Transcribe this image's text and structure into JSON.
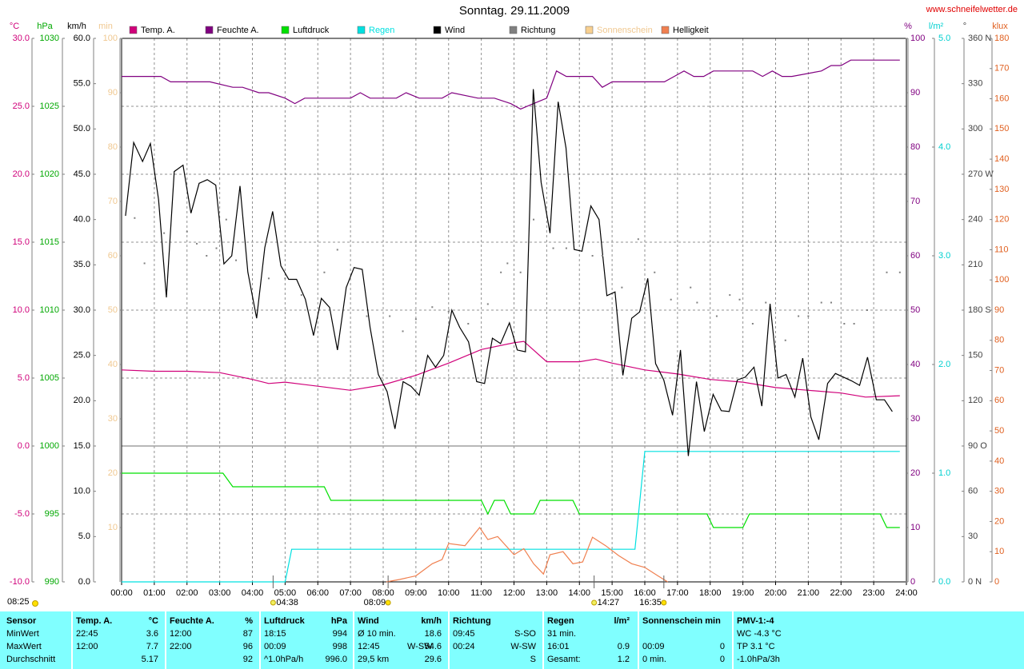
{
  "chart_data": {
    "type": "line",
    "title": "Sonntag. 29.11.2009",
    "source": "www.schneifelwetter.de",
    "updated": "08:25",
    "xlim": [
      0,
      24
    ],
    "xticks": [
      {
        "value": 0,
        "label": "00:00"
      },
      {
        "value": 1,
        "label": "01:00"
      },
      {
        "value": 2,
        "label": "02:00"
      },
      {
        "value": 3,
        "label": "03:00"
      },
      {
        "value": 4,
        "label": "04:00"
      },
      {
        "value": 5,
        "label": "05:00"
      },
      {
        "value": 6,
        "label": "06:00"
      },
      {
        "value": 7,
        "label": "07:00"
      },
      {
        "value": 8,
        "label": "08:00"
      },
      {
        "value": 9,
        "label": "09:00"
      },
      {
        "value": 10,
        "label": "10:00"
      },
      {
        "value": 11,
        "label": "11:00"
      },
      {
        "value": 12,
        "label": "12:00"
      },
      {
        "value": 13,
        "label": "13:00"
      },
      {
        "value": 14,
        "label": "14:00"
      },
      {
        "value": 15,
        "label": "15:00"
      },
      {
        "value": 16,
        "label": "16:00"
      },
      {
        "value": 17,
        "label": "17:00"
      },
      {
        "value": 18,
        "label": "18:00"
      },
      {
        "value": 19,
        "label": "19:00"
      },
      {
        "value": 20,
        "label": "20:00"
      },
      {
        "value": 21,
        "label": "21:00"
      },
      {
        "value": 22,
        "label": "22:00"
      },
      {
        "value": 23,
        "label": "23:00"
      },
      {
        "value": 24,
        "label": "24:00"
      }
    ],
    "grid": true,
    "axes": [
      {
        "label": "°C",
        "color": "#d0007a",
        "side": "left",
        "lim": [
          -10,
          30
        ],
        "ticks": [
          {
            "value": 30,
            "label": "30.0"
          },
          {
            "value": 25,
            "label": "25.0"
          },
          {
            "value": 20,
            "label": "20.0"
          },
          {
            "value": 15,
            "label": "15.0"
          },
          {
            "value": 10,
            "label": "10.0"
          },
          {
            "value": 5,
            "label": "5.0"
          },
          {
            "value": 0,
            "label": "0.0"
          },
          {
            "value": -5,
            "label": "-5.0"
          },
          {
            "value": -10,
            "label": "-10.0"
          }
        ]
      },
      {
        "label": "hPa",
        "color": "#00a800",
        "side": "left",
        "lim": [
          990,
          1030
        ],
        "ticks": [
          1030,
          1025,
          1020,
          1015,
          1010,
          1005,
          1000,
          995,
          990
        ]
      },
      {
        "label": "km/h",
        "color": "#000000",
        "side": "left",
        "lim": [
          0,
          60
        ],
        "ticks": [
          {
            "value": 60,
            "label": "60.0"
          },
          {
            "value": 55,
            "label": "55.0"
          },
          {
            "value": 50,
            "label": "50.0"
          },
          {
            "value": 45,
            "label": "45.0"
          },
          {
            "value": 40,
            "label": "40.0"
          },
          {
            "value": 35,
            "label": "35.0"
          },
          {
            "value": 30,
            "label": "30.0"
          },
          {
            "value": 25,
            "label": "25.0"
          },
          {
            "value": 20,
            "label": "20.0"
          },
          {
            "value": 15,
            "label": "15.0"
          },
          {
            "value": 10,
            "label": "10.0"
          },
          {
            "value": 5,
            "label": "5.0"
          },
          {
            "value": 0,
            "label": "0.0"
          }
        ]
      },
      {
        "label": "min",
        "color": "#f0c890",
        "side": "left",
        "lim": [
          0,
          100
        ],
        "ticks": [
          100,
          90,
          80,
          70,
          60,
          50,
          40,
          30,
          20,
          10
        ]
      },
      {
        "label": "%",
        "color": "#800080",
        "side": "right",
        "lim": [
          0,
          100
        ],
        "ticks": [
          100,
          90,
          80,
          70,
          60,
          50,
          40,
          30,
          20,
          10,
          0
        ]
      },
      {
        "label": "l/m²",
        "color": "#00d0d0",
        "side": "right",
        "lim": [
          0,
          5
        ],
        "ticks": [
          {
            "value": 5,
            "label": "5.0"
          },
          {
            "value": 4,
            "label": "4.0"
          },
          {
            "value": 3,
            "label": "3.0"
          },
          {
            "value": 2,
            "label": "2.0"
          },
          {
            "value": 1,
            "label": "1.0"
          },
          {
            "value": 0,
            "label": "0.0"
          }
        ]
      },
      {
        "label": "°",
        "color": "#404040",
        "side": "right",
        "lim": [
          0,
          360
        ],
        "ticks": [
          {
            "value": 360,
            "label": "360 N"
          },
          330,
          300,
          {
            "value": 270,
            "label": "270 W"
          },
          240,
          210,
          {
            "value": 180,
            "label": "180 S"
          },
          150,
          120,
          {
            "value": 90,
            "label": "90 O"
          },
          60,
          30,
          {
            "value": 0,
            "label": "0 N"
          }
        ]
      },
      {
        "label": "klux",
        "color": "#e06020",
        "side": "right",
        "lim": [
          0,
          180
        ],
        "ticks": [
          180,
          170,
          160,
          150,
          140,
          130,
          120,
          110,
          100,
          90,
          80,
          70,
          60,
          50,
          40,
          30,
          20,
          10,
          0
        ]
      }
    ],
    "series": [
      {
        "name": "Temp. A.",
        "color": "#d0007a",
        "axis": 0,
        "x": [
          0,
          1,
          2,
          3,
          4,
          4.5,
          5,
          6,
          7,
          8,
          9,
          10,
          11,
          12,
          12.3,
          13,
          14,
          14.5,
          15,
          16,
          17,
          18,
          19,
          20,
          21,
          22,
          22.75,
          23.8
        ],
        "values": [
          5.6,
          5.5,
          5.5,
          5.4,
          4.9,
          4.6,
          4.7,
          4.4,
          4.1,
          4.5,
          5.2,
          6.1,
          7.1,
          7.6,
          7.7,
          6.2,
          6.2,
          6.4,
          6.1,
          5.6,
          5.3,
          4.9,
          4.7,
          4.3,
          4.1,
          3.9,
          3.6,
          3.7
        ]
      },
      {
        "name": "Feuchte A.",
        "color": "#800080",
        "axis": 4,
        "x": [
          0,
          1.2,
          1.5,
          2.7,
          3.4,
          3.7,
          4.2,
          4.5,
          5,
          5.3,
          5.6,
          6,
          7,
          7.3,
          7.6,
          8.4,
          8.7,
          9.1,
          9.8,
          10.1,
          10.9,
          11.4,
          11.9,
          12.2,
          12.6,
          13,
          13.3,
          13.6,
          14.4,
          14.7,
          15,
          16.6,
          16.9,
          17.2,
          17.5,
          17.8,
          18.1,
          19.3,
          19.6,
          19.9,
          20.2,
          20.5,
          21.4,
          21.7,
          22,
          22.3,
          23.8
        ],
        "values": [
          93,
          93,
          92,
          92,
          91,
          91,
          90,
          90,
          89,
          88,
          89,
          89,
          89,
          90,
          89,
          89,
          90,
          89,
          89,
          90,
          89,
          89,
          88,
          87,
          88,
          89,
          94,
          93,
          93,
          91,
          92,
          92,
          93,
          94,
          93,
          93,
          94,
          94,
          93,
          94,
          93,
          93,
          94,
          95,
          95,
          96,
          96
        ]
      },
      {
        "name": "Luftdruck",
        "color": "#00e000",
        "axis": 1,
        "x": [
          0,
          3.1,
          3.4,
          6.2,
          6.4,
          11,
          11.2,
          11.4,
          11.7,
          11.9,
          12.6,
          12.8,
          13.8,
          14,
          17.9,
          18.1,
          19,
          19.2,
          23.2,
          23.4,
          23.8
        ],
        "values": [
          998,
          998,
          997,
          997,
          996,
          996,
          995,
          996,
          996,
          995,
          995,
          996,
          996,
          995,
          995,
          994,
          994,
          995,
          995,
          994,
          994
        ]
      },
      {
        "name": "Regen",
        "color": "#00e0e0",
        "label_color": "#00e0e0",
        "axis": 5,
        "x": [
          0,
          5.0,
          5.2,
          15.7,
          16.0,
          23.8
        ],
        "values": [
          0,
          0,
          0.3,
          0.3,
          1.2,
          1.2
        ]
      },
      {
        "name": "Wind",
        "color": "#000000",
        "axis": 2,
        "x": [
          0.12,
          0.37,
          0.64,
          0.88,
          1.13,
          1.37,
          1.61,
          1.88,
          2.12,
          2.37,
          2.62,
          2.88,
          3.13,
          3.37,
          3.62,
          3.86,
          4.13,
          4.38,
          4.62,
          4.87,
          5.11,
          5.35,
          5.62,
          5.87,
          6.11,
          6.36,
          6.6,
          6.87,
          7.11,
          7.36,
          7.6,
          7.85,
          8.12,
          8.36,
          8.61,
          8.85,
          9.1,
          9.36,
          9.6,
          9.85,
          10.1,
          10.34,
          10.61,
          10.86,
          11.1,
          11.34,
          11.59,
          11.86,
          12.1,
          12.35,
          12.59,
          12.83,
          13.1,
          13.35,
          13.59,
          13.84,
          14.08,
          14.35,
          14.6,
          14.84,
          15.09,
          15.33,
          15.6,
          15.84,
          16.09,
          16.33,
          16.58,
          16.85,
          17.09,
          17.33,
          17.58,
          17.82,
          18.09,
          18.34,
          18.58,
          18.83,
          19.07,
          19.34,
          19.58,
          19.83,
          20.07,
          20.32,
          20.59,
          20.83,
          21.08,
          21.32,
          21.59,
          21.83,
          22.08,
          22.32,
          22.57,
          22.81,
          23.08,
          23.33,
          23.57
        ],
        "values": [
          40.4,
          48.5,
          46.4,
          48.4,
          42.2,
          31.4,
          45.3,
          46.0,
          40.7,
          44.0,
          44.4,
          43.8,
          35.1,
          36.0,
          43.7,
          34.2,
          29.1,
          36.9,
          40.9,
          34.9,
          33.4,
          33.4,
          31.2,
          27.2,
          31.3,
          30.3,
          25.6,
          32.5,
          34.7,
          34.5,
          28.1,
          22.9,
          21.0,
          16.9,
          22.1,
          21.6,
          20.6,
          25.0,
          23.7,
          25.0,
          30.0,
          28.1,
          26.5,
          22.1,
          21.9,
          26.9,
          26.3,
          28.6,
          25.6,
          25.4,
          54.4,
          44.1,
          38.5,
          53.0,
          47.9,
          36.7,
          36.5,
          41.5,
          40.0,
          31.6,
          32.0,
          22.8,
          29.1,
          29.8,
          33.5,
          24.1,
          22.3,
          18.4,
          25.6,
          13.9,
          22.1,
          16.6,
          20.7,
          18.9,
          18.8,
          22.3,
          22.6,
          23.7,
          19.4,
          30.7,
          22.5,
          22.9,
          20.4,
          24.7,
          18.2,
          15.7,
          21.9,
          23.0,
          22.6,
          22.2,
          21.7,
          24.8,
          20.1,
          20.1,
          18.8
        ]
      },
      {
        "name": "Richtung",
        "color": "#808080",
        "axis": 6,
        "marker": "dot",
        "x": [
          0.4,
          0.7,
          1.3,
          2.0,
          2.3,
          2.6,
          2.9,
          3.2,
          3.5,
          4.5,
          5.0,
          5.5,
          6.2,
          6.6,
          7.5,
          8.2,
          8.6,
          9.0,
          9.5,
          10.0,
          10.6,
          11.2,
          11.6,
          11.8,
          12.2,
          12.6,
          13.2,
          13.6,
          14.4,
          14.7,
          15.3,
          15.8,
          16.3,
          16.8,
          17.4,
          17.6,
          18.2,
          18.6,
          18.9,
          19.3,
          19.7,
          20.3,
          20.7,
          21.0,
          21.4,
          21.7,
          22.1,
          22.4,
          22.8,
          23.4,
          23.8
        ],
        "values": [
          241,
          211,
          231,
          232,
          224,
          216,
          221,
          240,
          213,
          201,
          201,
          190,
          205,
          220,
          176,
          176,
          166,
          174,
          182,
          179,
          171,
          184,
          205,
          211,
          205,
          240,
          221,
          221,
          216,
          216,
          195,
          227,
          205,
          187,
          195,
          185,
          176,
          190,
          187,
          171,
          185,
          160,
          176,
          176,
          185,
          185,
          171,
          171,
          180,
          205,
          205
        ]
      },
      {
        "name": "Sonnenschein",
        "color": "#f8d090",
        "label_color": "#f0c890",
        "axis": 3,
        "x": [],
        "values": []
      },
      {
        "name": "Helligkeit",
        "color": "#f08050",
        "axis": 7,
        "x": [
          8.1,
          8.5,
          9,
          9.5,
          9.8,
          10,
          10.5,
          10.95,
          11.2,
          11.5,
          12,
          12.3,
          12.6,
          12.9,
          13.1,
          13.5,
          13.8,
          14.1,
          14.4,
          14.8,
          15.2,
          15.6,
          16,
          16.4,
          16.7
        ],
        "values": [
          0,
          0.8,
          2,
          6,
          7.4,
          12.7,
          12,
          18,
          14,
          15,
          9,
          11,
          6,
          2.6,
          9,
          10,
          6,
          6.6,
          14.8,
          12,
          8.7,
          6,
          4.8,
          2,
          0
        ]
      }
    ],
    "annotations": [
      {
        "x": 4.633,
        "label": "04:38",
        "icon": "moon"
      },
      {
        "x": 8.15,
        "label": "08:09",
        "icon": "sun"
      },
      {
        "x": 14.45,
        "label": "14:27",
        "icon": "moon"
      },
      {
        "x": 16.583,
        "label": "16:35",
        "icon": "sun"
      }
    ]
  },
  "table": {
    "sections": [
      {
        "header": {
          "left": "Sensor"
        },
        "rows": [
          {
            "left": "MinWert"
          },
          {
            "left": "MaxWert"
          },
          {
            "left": "Durchschnitt"
          }
        ]
      },
      {
        "header": {
          "left": "Temp. A.",
          "right": "°C"
        },
        "rows": [
          {
            "left": "22:45",
            "right": "3.6"
          },
          {
            "left": "12:00",
            "right": "7.7"
          },
          {
            "right": "5.17"
          }
        ]
      },
      {
        "header": {
          "left": "Feuchte A.",
          "right": "%"
        },
        "rows": [
          {
            "left": "12:00",
            "right": "87"
          },
          {
            "left": "22:00",
            "right": "96"
          },
          {
            "right": "92"
          }
        ]
      },
      {
        "header": {
          "left": "Luftdruck",
          "right": "hPa"
        },
        "rows": [
          {
            "left": "18:15",
            "right": "994"
          },
          {
            "left": "00:09",
            "right": "998"
          },
          {
            "left": "^1.0hPa/h",
            "right": "996.0"
          }
        ]
      },
      {
        "header": {
          "left": "Wind",
          "right": "km/h"
        },
        "rows": [
          {
            "left": "Ø 10 min.",
            "right": "18.6"
          },
          {
            "left": "12:45",
            "mid": "W-SW",
            "right": "54.6"
          },
          {
            "left": "29,5 km",
            "right": "29.6"
          }
        ]
      },
      {
        "header": {
          "left": "Richtung"
        },
        "rows": [
          {
            "left": "09:45",
            "right": "S-SO"
          },
          {
            "left": "00:24",
            "right": "W-SW"
          },
          {
            "right": "S"
          }
        ]
      },
      {
        "header": {
          "left": "Regen",
          "right": "l/m²"
        },
        "rows": [
          {
            "left": "31 min."
          },
          {
            "left": "16:01",
            "right": "0.9"
          },
          {
            "left": "Gesamt:",
            "right": "1.2"
          }
        ]
      },
      {
        "header": {
          "left": "Sonnenschein min"
        },
        "rows": [
          {},
          {
            "left": "00:09",
            "right": "0"
          },
          {
            "left": "0 min.",
            "right": "0"
          }
        ]
      },
      {
        "header": {
          "left": "PMV-1:-4"
        },
        "rows": [
          {
            "left": "WC -4.3 °C"
          },
          {
            "left": "TP 3.1 °C"
          },
          {
            "left": "-1.0hPa/3h"
          }
        ]
      }
    ]
  }
}
